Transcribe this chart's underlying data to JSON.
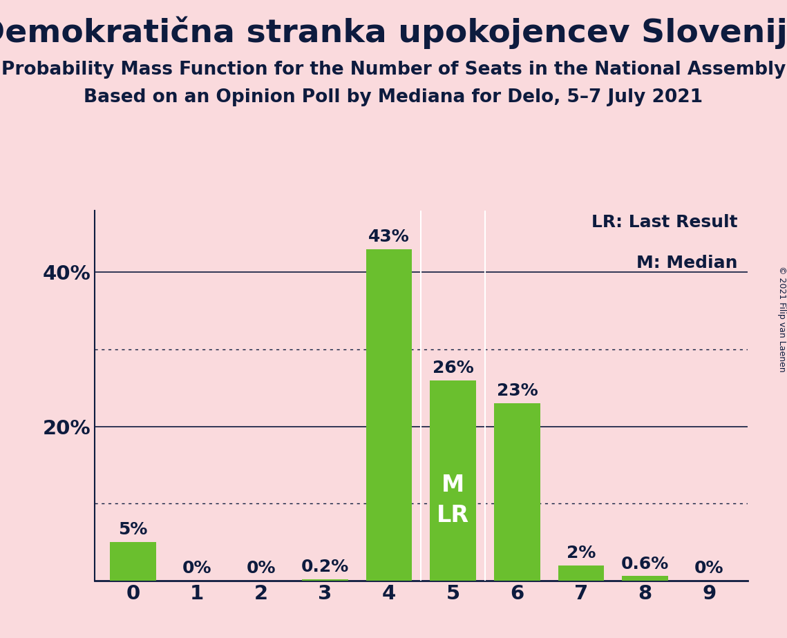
{
  "title": "Demokratična stranka upokojencev Slovenije",
  "subtitle1": "Probability Mass Function for the Number of Seats in the National Assembly",
  "subtitle2": "Based on an Opinion Poll by Mediana for Delo, 5–7 July 2021",
  "categories": [
    0,
    1,
    2,
    3,
    4,
    5,
    6,
    7,
    8,
    9
  ],
  "values": [
    5.0,
    0.0,
    0.0,
    0.2,
    43.0,
    26.0,
    23.0,
    2.0,
    0.6,
    0.0
  ],
  "bar_labels": [
    "5%",
    "0%",
    "0%",
    "0.2%",
    "43%",
    "26%",
    "23%",
    "2%",
    "0.6%",
    "0%"
  ],
  "bar_color": "#6abf2e",
  "background_color": "#fadadd",
  "text_color": "#0d1b3e",
  "yticks": [
    0,
    10,
    20,
    30,
    40
  ],
  "ytick_labels": [
    "",
    "",
    "20%",
    "",
    "40%"
  ],
  "ylim": [
    0,
    48
  ],
  "legend_lr": "LR: Last Result",
  "legend_m": "M: Median",
  "median_bar_idx": 5,
  "copyright": "© 2021 Filip van Laenen",
  "title_fontsize": 34,
  "subtitle_fontsize": 19,
  "label_fontsize": 18,
  "axis_fontsize": 21,
  "legend_fontsize": 18,
  "ml_fontsize": 24,
  "solid_lines": [
    20,
    40
  ],
  "dotted_lines": [
    10,
    30
  ],
  "bar_width": 0.72
}
